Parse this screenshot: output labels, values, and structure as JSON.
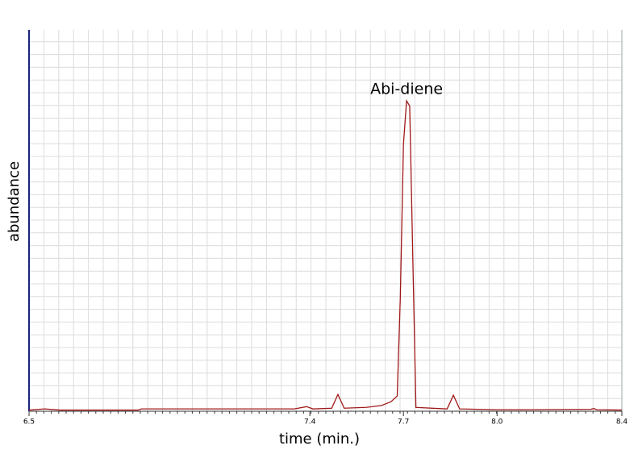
{
  "chart_data": {
    "type": "line",
    "xlabel": "time (min.)",
    "ylabel": "abundance",
    "annotation": "Abi-diene",
    "x": [
      6.5,
      6.55,
      6.6,
      6.85,
      6.86,
      7.35,
      7.39,
      7.41,
      7.47,
      7.49,
      7.51,
      7.58,
      7.63,
      7.66,
      7.68,
      7.69,
      7.7,
      7.71,
      7.72,
      7.73,
      7.74,
      7.84,
      7.86,
      7.88,
      8.0,
      8.1,
      8.3,
      8.31,
      8.32,
      8.4
    ],
    "series": [
      {
        "color": "#a01818",
        "values": [
          0.3,
          0.6,
          0.3,
          0.3,
          0.6,
          0.6,
          1.2,
          0.6,
          0.8,
          4.4,
          0.8,
          1.0,
          1.5,
          2.5,
          4,
          30,
          70,
          81.4,
          80,
          40,
          1,
          0.6,
          4.2,
          0.6,
          0.4,
          0.4,
          0.5,
          0.7,
          0.4,
          0.3
        ]
      }
    ],
    "annotation_x": 7.71,
    "annotation_y": 81.4,
    "xlim": [
      6.5,
      8.4
    ],
    "xticks": [
      6.5,
      7.4,
      7.7,
      {
        "value": 8.0,
        "label": "8.0"
      },
      8.4
    ],
    "ylim": [
      0,
      100
    ],
    "grid": true
  }
}
